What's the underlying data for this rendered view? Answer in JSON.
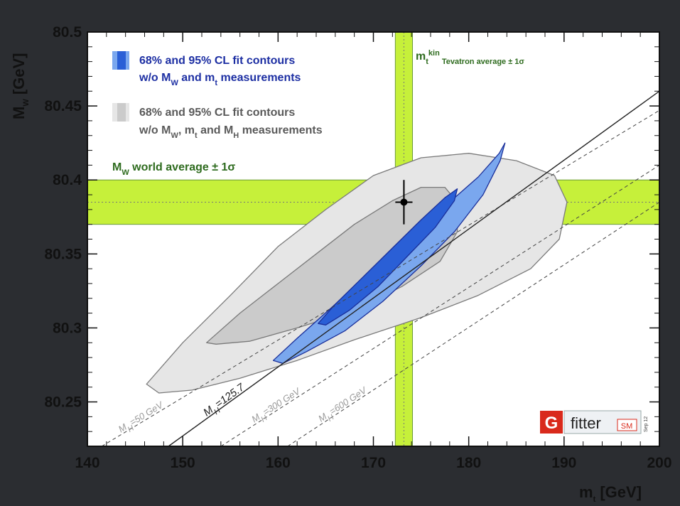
{
  "colors": {
    "background": "#2b2d31",
    "plot_bg": "#ffffff",
    "band_green": "#c6f03a",
    "band_green_edge": "#6a9a3a",
    "blue_95": "#7aa7ee",
    "blue_68": "#2a5fd6",
    "blue_edge": "#1a2f9a",
    "gray_95": "#e6e6e6",
    "gray_68": "#cbcbcb",
    "gray_edge": "#7a7a7a"
  },
  "chart_data": {
    "type": "scatter",
    "xlabel": "m",
    "xlabel_sub": "t",
    "xlabel_unit": " [GeV]",
    "ylabel": "M",
    "ylabel_sub": "W",
    "ylabel_unit": " [GeV]",
    "xlim": [
      140,
      200
    ],
    "ylim": [
      80.22,
      80.5
    ],
    "x_ticks": [
      "140",
      "150",
      "160",
      "170",
      "180",
      "190",
      "200"
    ],
    "y_ticks": [
      "80.25",
      "80.3",
      "80.35",
      "80.4",
      "80.45",
      "80.5"
    ],
    "measurement": {
      "mt": 173.2,
      "mt_err": 0.9,
      "mw": 80.385,
      "mw_err": 0.015
    },
    "mw_band": {
      "center": 80.385,
      "half_width": 0.015
    },
    "mt_band": {
      "center": 173.2,
      "half_width": 0.9
    },
    "legend": {
      "blue_line1": "68% and 95% CL fit contours",
      "blue_line2_parts": [
        "w/o M",
        "W",
        " and m",
        "t",
        " measurements"
      ],
      "gray_line1": "68% and 95% CL fit contours",
      "gray_line2_parts": [
        "w/o M",
        "W",
        ", m",
        "t",
        " and M",
        "H",
        " measurements"
      ]
    },
    "annotations": {
      "mw_band_parts": [
        "M",
        "W",
        " world average ± 1σ"
      ],
      "mt_band_parts": [
        "m",
        "t",
        "kin",
        " Tevatron average  ± 1σ"
      ]
    },
    "mh_lines": [
      {
        "parts": [
          "M",
          "H",
          "=50 GeV"
        ],
        "x1": 141.5,
        "y1": 80.22,
        "x2": 200,
        "y2": 80.447,
        "style": "dashed",
        "label_mt": 143.5
      },
      {
        "parts": [
          "M",
          "H",
          "=125.7"
        ],
        "x1": 148.5,
        "y1": 80.22,
        "x2": 200,
        "y2": 80.46,
        "style": "solid",
        "label_mt": 152.5
      },
      {
        "parts": [
          "M",
          "H",
          "=300 GeV"
        ],
        "x1": 154,
        "y1": 80.22,
        "x2": 200,
        "y2": 80.41,
        "style": "dashed",
        "label_mt": 157.5
      },
      {
        "parts": [
          "M",
          "H",
          "=600 GeV"
        ],
        "x1": 161,
        "y1": 80.22,
        "x2": 200,
        "y2": 80.385,
        "style": "dashed",
        "label_mt": 164.5
      }
    ],
    "contours": {
      "gray_95": {
        "center": [
          168.5,
          80.34
        ],
        "semi_major_deg_pts": [
          [
            146,
            80.27
          ],
          [
            190.5,
            80.37
          ]
        ],
        "points": [
          [
            146.2,
            80.262
          ],
          [
            150,
            80.29
          ],
          [
            155,
            80.322
          ],
          [
            160,
            80.355
          ],
          [
            165,
            80.38
          ],
          [
            170,
            80.403
          ],
          [
            175,
            80.415
          ],
          [
            180,
            80.418
          ],
          [
            185,
            80.413
          ],
          [
            189,
            80.403
          ],
          [
            190.3,
            80.385
          ],
          [
            189.5,
            80.36
          ],
          [
            186.5,
            80.34
          ],
          [
            181,
            80.322
          ],
          [
            175,
            80.307
          ],
          [
            168,
            80.292
          ],
          [
            162,
            80.278
          ],
          [
            156,
            80.266
          ],
          [
            151,
            80.258
          ],
          [
            147.5,
            80.256
          ]
        ]
      },
      "gray_68": {
        "points": [
          [
            152.5,
            80.29
          ],
          [
            156,
            80.31
          ],
          [
            160,
            80.33
          ],
          [
            164,
            80.35
          ],
          [
            168,
            80.37
          ],
          [
            172,
            80.386
          ],
          [
            175,
            80.395
          ],
          [
            177.5,
            80.395
          ],
          [
            178.8,
            80.385
          ],
          [
            178.8,
            80.365
          ],
          [
            177,
            80.345
          ],
          [
            173,
            80.328
          ],
          [
            168,
            80.312
          ],
          [
            162,
            80.3
          ],
          [
            157,
            80.291
          ],
          [
            153.5,
            80.289
          ]
        ]
      },
      "blue_95": {
        "points": [
          [
            159.5,
            80.278
          ],
          [
            162,
            80.293
          ],
          [
            166,
            80.316
          ],
          [
            170,
            80.34
          ],
          [
            174,
            80.363
          ],
          [
            178,
            80.385
          ],
          [
            181,
            80.402
          ],
          [
            183.2,
            80.418
          ],
          [
            183.8,
            80.425
          ],
          [
            183.3,
            80.413
          ],
          [
            181.5,
            80.39
          ],
          [
            178.5,
            80.365
          ],
          [
            175,
            80.342
          ],
          [
            171,
            80.318
          ],
          [
            167,
            80.298
          ],
          [
            163,
            80.284
          ],
          [
            160.5,
            80.276
          ]
        ]
      },
      "blue_68": {
        "points": [
          [
            164.2,
            80.303
          ],
          [
            166,
            80.316
          ],
          [
            169,
            80.335
          ],
          [
            172,
            80.354
          ],
          [
            175,
            80.373
          ],
          [
            177.5,
            80.388
          ],
          [
            178.8,
            80.394
          ],
          [
            178.5,
            80.386
          ],
          [
            176.5,
            80.368
          ],
          [
            173.5,
            80.348
          ],
          [
            170.5,
            80.328
          ],
          [
            167.5,
            80.312
          ],
          [
            165,
            80.302
          ]
        ]
      }
    }
  },
  "logo": {
    "g": "G",
    "fitter": "fitter",
    "sm": "SM",
    "date": "Sep 12"
  }
}
